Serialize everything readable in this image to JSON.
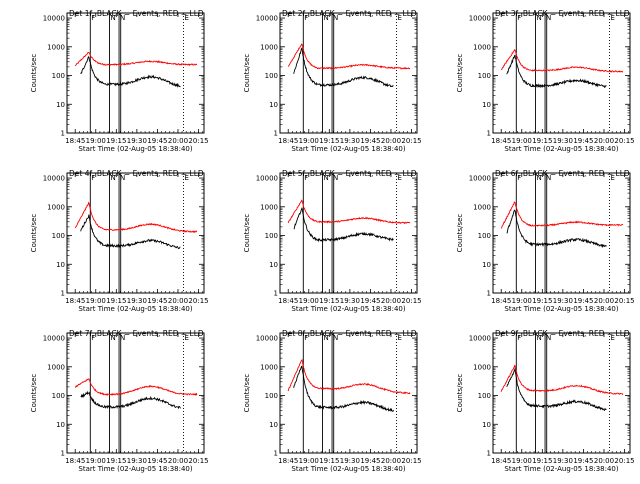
{
  "chart_data": {
    "type": "line",
    "x_tick_labels": [
      "18:45",
      "19:00",
      "19:15",
      "19:30",
      "19:45",
      "20:00",
      "20:15"
    ],
    "x_tick_minutes": [
      0,
      15,
      30,
      45,
      60,
      75,
      90
    ],
    "y_tick_labels": [
      "1",
      "10",
      "100",
      "1000",
      "10000"
    ],
    "ylim": [
      1,
      10000
    ],
    "y_scale": "log",
    "ylabel": "Counts/sec",
    "xlabel": "Start Time (02-Aug-05 18:38:40)",
    "colors": {
      "black": "#000000",
      "red": "#ff0000"
    },
    "marker_labels": {
      "top_left": "F",
      "top_mid1": "N",
      "top_mid2": "N",
      "top_right": "F",
      "top_dotted": "E"
    },
    "panels": [
      {
        "title": "Det 1f, BLACK = Events, RED = LLD",
        "events": {
          "start": 110,
          "peak": 460,
          "settle": 50,
          "bump": 95,
          "end": 40
        },
        "lld": {
          "start": 220,
          "peak": 650,
          "settle": 240,
          "bump": 320,
          "end": 240
        }
      },
      {
        "title": "Det 2f, BLACK = Events, RED = LLD",
        "events": {
          "start": 120,
          "peak": 900,
          "settle": 48,
          "bump": 90,
          "end": 38
        },
        "lld": {
          "start": 200,
          "peak": 1300,
          "settle": 180,
          "bump": 240,
          "end": 180
        }
      },
      {
        "title": "Det 3f, BLACK = Events, RED = LLD",
        "events": {
          "start": 110,
          "peak": 520,
          "settle": 45,
          "bump": 70,
          "end": 40
        },
        "lld": {
          "start": 160,
          "peak": 800,
          "settle": 150,
          "bump": 200,
          "end": 140
        }
      },
      {
        "title": "Det 4f, BLACK = Events, RED = LLD",
        "events": {
          "start": 150,
          "peak": 500,
          "settle": 45,
          "bump": 70,
          "end": 35
        },
        "lld": {
          "start": 180,
          "peak": 1400,
          "settle": 160,
          "bump": 260,
          "end": 140
        }
      },
      {
        "title": "Det 5f, BLACK = Events, RED = LLD",
        "events": {
          "start": 170,
          "peak": 900,
          "settle": 70,
          "bump": 120,
          "end": 70
        },
        "lld": {
          "start": 280,
          "peak": 1700,
          "settle": 300,
          "bump": 420,
          "end": 280
        }
      },
      {
        "title": "Det 6f, BLACK = Events, RED = LLD",
        "events": {
          "start": 120,
          "peak": 800,
          "settle": 50,
          "bump": 75,
          "end": 40
        },
        "lld": {
          "start": 180,
          "peak": 1500,
          "settle": 220,
          "bump": 300,
          "end": 230
        }
      },
      {
        "title": "Det 7f, BLACK = Events, RED = LLD",
        "events": {
          "start": 90,
          "peak": 130,
          "settle": 40,
          "bump": 85,
          "end": 35
        },
        "lld": {
          "start": 200,
          "peak": 380,
          "settle": 110,
          "bump": 220,
          "end": 110
        }
      },
      {
        "title": "Det 8f, BLACK = Events, RED = LLD",
        "events": {
          "start": 200,
          "peak": 1100,
          "settle": 40,
          "bump": 60,
          "end": 28
        },
        "lld": {
          "start": 150,
          "peak": 1800,
          "settle": 180,
          "bump": 260,
          "end": 130
        }
      },
      {
        "title": "Det 9f, BLACK = Events, RED = LLD",
        "events": {
          "start": 200,
          "peak": 800,
          "settle": 45,
          "bump": 65,
          "end": 30
        },
        "lld": {
          "start": 140,
          "peak": 1100,
          "settle": 150,
          "bump": 230,
          "end": 120
        }
      }
    ]
  }
}
